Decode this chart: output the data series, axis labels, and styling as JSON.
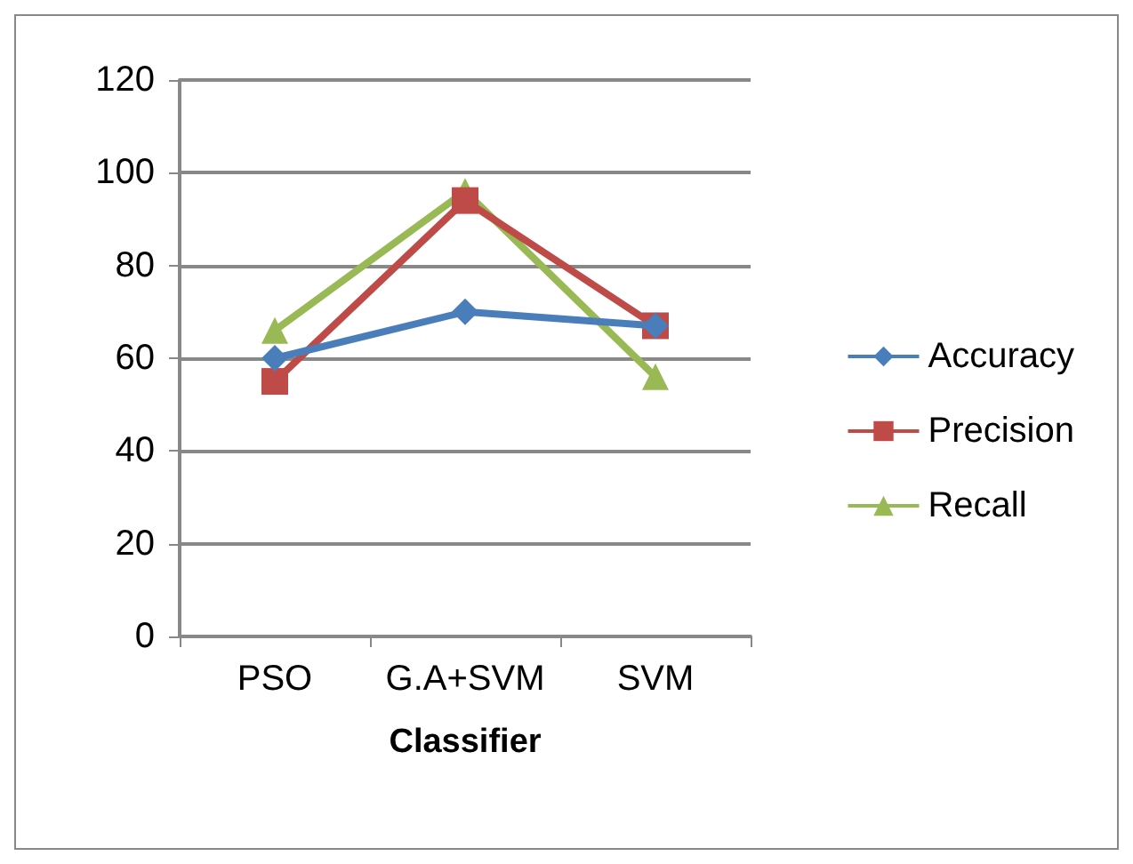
{
  "chart_data": {
    "type": "line",
    "xlabel": "Classifier",
    "categories": [
      "PSO",
      "G.A+SVM",
      "SVM"
    ],
    "series": [
      {
        "name": "Accuracy",
        "color": "#4a7ebb",
        "marker": "diamond",
        "values": [
          60,
          70,
          67
        ]
      },
      {
        "name": "Precision",
        "color": "#be4b48",
        "marker": "square",
        "values": [
          55,
          94,
          67
        ]
      },
      {
        "name": "Recall",
        "color": "#98b954",
        "marker": "triangle",
        "values": [
          66,
          96,
          56
        ]
      }
    ],
    "ylim": [
      0,
      120
    ],
    "yticks": [
      0,
      20,
      40,
      60,
      80,
      100,
      120
    ],
    "grid": "y",
    "legend": "right"
  }
}
